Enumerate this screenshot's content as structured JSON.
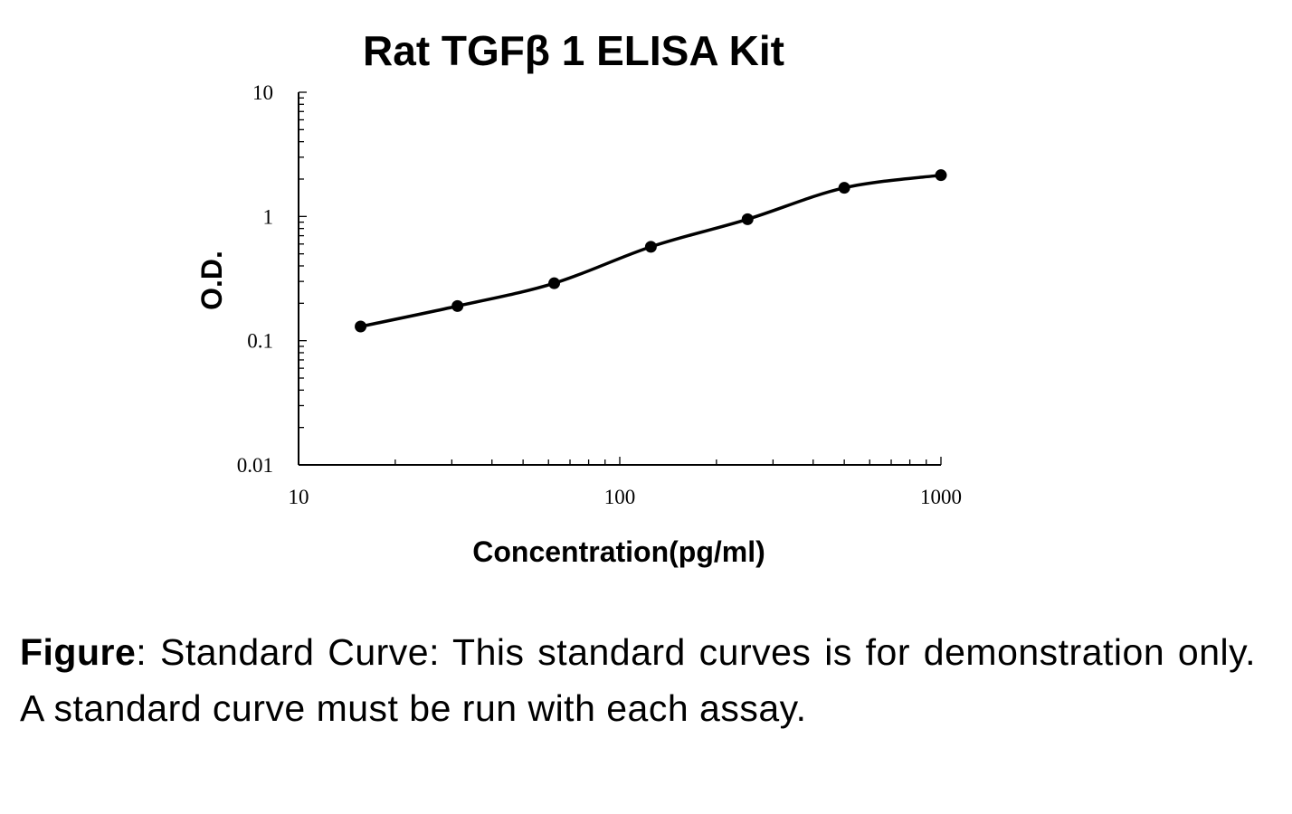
{
  "chart_data": {
    "type": "scatter",
    "title": "Rat TGFβ 1 ELISA Kit",
    "xlabel": "Concentration(pg/ml)",
    "ylabel": "O.D.",
    "x_scale": "log",
    "y_scale": "log",
    "xlim": [
      10,
      1000
    ],
    "ylim": [
      0.01,
      10
    ],
    "x_ticks": [
      "10",
      "100",
      "1000"
    ],
    "y_ticks": [
      "0.01",
      "0.1",
      "1",
      "10"
    ],
    "grid": false,
    "legend": "none",
    "series": [
      {
        "x": [
          15.6,
          31.25,
          62.5,
          125,
          250,
          500,
          1000
        ],
        "y": [
          0.13,
          0.19,
          0.29,
          0.57,
          0.95,
          1.7,
          2.15
        ]
      }
    ],
    "fit_curve": true,
    "colors": {
      "line": "#000000",
      "points": "#000000"
    }
  },
  "caption": {
    "label": "Figure",
    "text": ": Standard Curve: This standard curves is for demonstration only. A standard curve must be run with each assay."
  }
}
